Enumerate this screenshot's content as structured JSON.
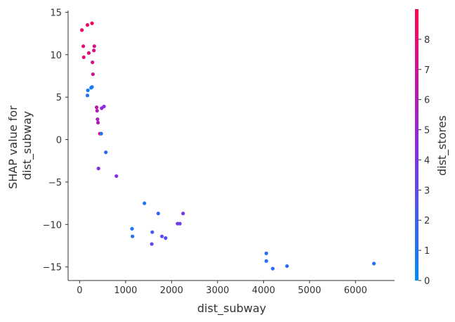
{
  "chart_data": {
    "type": "scatter",
    "title": "",
    "xlabel": "dist_subway",
    "ylabel_lines": [
      "SHAP value for",
      "dist_subway"
    ],
    "xlim": [
      -250,
      6850
    ],
    "ylim": [
      -16.6,
      15.2
    ],
    "xticks": [
      0,
      1000,
      2000,
      3000,
      4000,
      5000,
      6000
    ],
    "yticks": [
      15,
      10,
      5,
      0,
      -5,
      -10,
      -15
    ],
    "grid": false,
    "colorbar": {
      "label": "dist_stores",
      "min": 0,
      "max": 9,
      "ticks": [
        0,
        1,
        2,
        3,
        4,
        5,
        6,
        7,
        8
      ],
      "color_low": "#008afb",
      "color_mid": "#8a2be2",
      "color_high": "#ff0052"
    },
    "points": [
      {
        "x": 50,
        "y": 12.9,
        "c": 8.3
      },
      {
        "x": 170,
        "y": 13.5,
        "c": 8.2
      },
      {
        "x": 270,
        "y": 13.7,
        "c": 8.6
      },
      {
        "x": 80,
        "y": 11.0,
        "c": 8.1
      },
      {
        "x": 90,
        "y": 9.7,
        "c": 8.0
      },
      {
        "x": 200,
        "y": 10.2,
        "c": 7.8
      },
      {
        "x": 320,
        "y": 11.0,
        "c": 7.6
      },
      {
        "x": 310,
        "y": 10.5,
        "c": 7.4
      },
      {
        "x": 280,
        "y": 9.1,
        "c": 7.2
      },
      {
        "x": 290,
        "y": 7.7,
        "c": 6.8
      },
      {
        "x": 180,
        "y": 5.8,
        "c": 0.7
      },
      {
        "x": 250,
        "y": 6.1,
        "c": 0.6
      },
      {
        "x": 270,
        "y": 6.2,
        "c": 0.8
      },
      {
        "x": 170,
        "y": 5.2,
        "c": 0.9
      },
      {
        "x": 370,
        "y": 3.8,
        "c": 6.3
      },
      {
        "x": 380,
        "y": 3.4,
        "c": 6.1
      },
      {
        "x": 480,
        "y": 3.7,
        "c": 4.9
      },
      {
        "x": 530,
        "y": 3.9,
        "c": 4.5
      },
      {
        "x": 390,
        "y": 2.4,
        "c": 5.8
      },
      {
        "x": 400,
        "y": 2.0,
        "c": 6.0
      },
      {
        "x": 440,
        "y": 0.7,
        "c": 8.4
      },
      {
        "x": 470,
        "y": 0.7,
        "c": 1.4
      },
      {
        "x": 570,
        "y": -1.5,
        "c": 1.5
      },
      {
        "x": 410,
        "y": -3.4,
        "c": 4.2
      },
      {
        "x": 800,
        "y": -4.3,
        "c": 4.0
      },
      {
        "x": 1410,
        "y": -7.5,
        "c": 0.9
      },
      {
        "x": 1710,
        "y": -8.7,
        "c": 1.6
      },
      {
        "x": 2250,
        "y": -8.7,
        "c": 3.8
      },
      {
        "x": 2130,
        "y": -9.9,
        "c": 3.9
      },
      {
        "x": 2180,
        "y": -9.9,
        "c": 3.7
      },
      {
        "x": 1140,
        "y": -10.5,
        "c": 1.1
      },
      {
        "x": 1580,
        "y": -10.9,
        "c": 2.3
      },
      {
        "x": 1150,
        "y": -11.4,
        "c": 1.2
      },
      {
        "x": 1790,
        "y": -11.4,
        "c": 2.9
      },
      {
        "x": 1870,
        "y": -11.6,
        "c": 2.7
      },
      {
        "x": 1570,
        "y": -12.3,
        "c": 3.2
      },
      {
        "x": 4060,
        "y": -13.4,
        "c": 1.3
      },
      {
        "x": 4060,
        "y": -14.3,
        "c": 1.1
      },
      {
        "x": 4510,
        "y": -14.9,
        "c": 1.5
      },
      {
        "x": 4200,
        "y": -15.2,
        "c": 1.4
      },
      {
        "x": 6400,
        "y": -14.6,
        "c": 1.0
      }
    ]
  }
}
